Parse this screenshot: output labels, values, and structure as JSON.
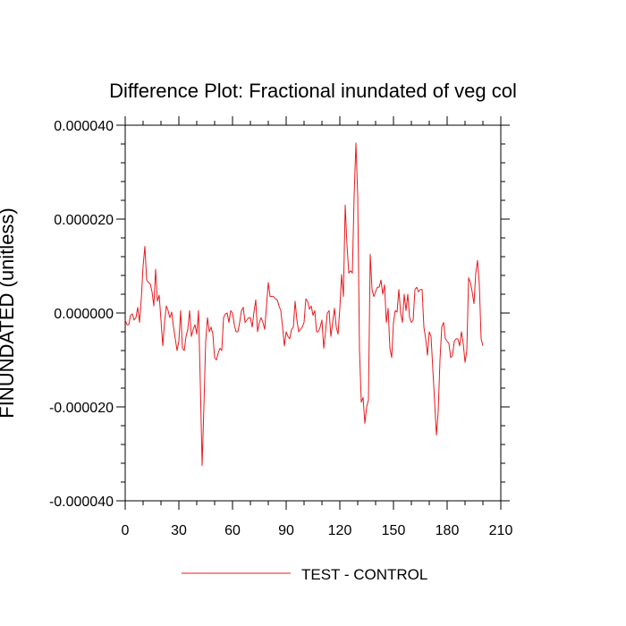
{
  "chart_data": {
    "type": "line",
    "title": "Difference Plot: Fractional inundated of veg col",
    "xlabel": "",
    "ylabel": "FINUNDATED  (unitless)",
    "xlim": [
      0,
      210
    ],
    "ylim": [
      -4e-05,
      4e-05
    ],
    "x_ticks": [
      0,
      30,
      60,
      90,
      120,
      150,
      180,
      210
    ],
    "x_tick_labels": [
      "0",
      "30",
      "60",
      "90",
      "120",
      "150",
      "180",
      "210"
    ],
    "y_ticks": [
      -4e-05,
      -2e-05,
      0,
      2e-05,
      4e-05
    ],
    "y_tick_labels": [
      "-0.000040",
      "-0.000020",
      "0.000000",
      "0.000020",
      "0.000040"
    ],
    "grid": false,
    "legend_position": "bottom-center",
    "colors": {
      "series": "#e8191e",
      "axis": "#000000"
    },
    "series": [
      {
        "name": "TEST - CONTROL",
        "points": [
          [
            0,
            -1.5e-06
          ],
          [
            1,
            -2.5e-06
          ],
          [
            2,
            -2.5e-06
          ],
          [
            3,
            -5e-07
          ],
          [
            4,
            -2e-07
          ],
          [
            5,
            -1.5e-06
          ],
          [
            6,
            -1e-06
          ],
          [
            7,
            1.2e-06
          ],
          [
            8,
            -2e-06
          ],
          [
            9,
            3e-06
          ],
          [
            10,
            1e-05
          ],
          [
            11,
            1.42e-05
          ],
          [
            12,
            7e-06
          ],
          [
            13,
            6.5e-06
          ],
          [
            14,
            6.2e-06
          ],
          [
            15,
            4.5e-06
          ],
          [
            16,
            1.5e-06
          ],
          [
            17,
            9.3e-06
          ],
          [
            18,
            2.5e-06
          ],
          [
            19,
            3.8e-06
          ],
          [
            20,
            -1.5e-06
          ],
          [
            21,
            -7e-06
          ],
          [
            22,
            -2e-06
          ],
          [
            23,
            1.5e-06
          ],
          [
            24,
            5e-07
          ],
          [
            25,
            -1e-06
          ],
          [
            26,
            2e-07
          ],
          [
            27,
            -3e-06
          ],
          [
            28,
            -5.5e-06
          ],
          [
            29,
            -8e-06
          ],
          [
            30,
            -6e-06
          ],
          [
            31,
            5e-07
          ],
          [
            32,
            -7.5e-06
          ],
          [
            33,
            -8e-06
          ],
          [
            34,
            -5e-06
          ],
          [
            35,
            -3.5e-06
          ],
          [
            36,
            5e-07
          ],
          [
            37,
            -5e-06
          ],
          [
            38,
            -3.5e-06
          ],
          [
            39,
            -2.5e-06
          ],
          [
            40,
            -4.5e-06
          ],
          [
            41,
            5e-07
          ],
          [
            42,
            -1.5e-05
          ],
          [
            43,
            -3.25e-05
          ],
          [
            44,
            -2e-05
          ],
          [
            45,
            -6e-06
          ],
          [
            46,
            -1e-06
          ],
          [
            47,
            -4e-06
          ],
          [
            48,
            -3e-06
          ],
          [
            49,
            -4.5e-06
          ],
          [
            50,
            -9.5e-06
          ],
          [
            51,
            -1e-05
          ],
          [
            52,
            -8.5e-06
          ],
          [
            53,
            -7.5e-06
          ],
          [
            54,
            -8e-06
          ],
          [
            55,
            -1e-06
          ],
          [
            56,
            -2e-07
          ],
          [
            57,
            0.0
          ],
          [
            58,
            -2e-06
          ],
          [
            59,
            5e-07
          ],
          [
            60,
            0.0
          ],
          [
            61,
            -2.5e-06
          ],
          [
            62,
            -4e-06
          ],
          [
            63,
            -4e-06
          ],
          [
            64,
            -2e-06
          ],
          [
            65,
            5e-07
          ],
          [
            66,
            1.2e-06
          ],
          [
            67,
            -2e-06
          ],
          [
            68,
            -1.5e-06
          ],
          [
            69,
            -1e-06
          ],
          [
            70,
            -1e-06
          ],
          [
            71,
            -3e-06
          ],
          [
            72,
            2e-07
          ],
          [
            73,
            2.8e-06
          ],
          [
            74,
            -4e-06
          ],
          [
            75,
            -2e-06
          ],
          [
            76,
            -1e-06
          ],
          [
            77,
            -2e-06
          ],
          [
            78,
            -3.5e-06
          ],
          [
            79,
            1.5e-06
          ],
          [
            80,
            6.5e-06
          ],
          [
            81,
            3.5e-06
          ],
          [
            82,
            3.5e-06
          ],
          [
            83,
            3.5e-06
          ],
          [
            84,
            3e-06
          ],
          [
            85,
            2.8e-06
          ],
          [
            86,
            1.5e-06
          ],
          [
            87,
            5e-07
          ],
          [
            88,
            -3e-06
          ],
          [
            89,
            -7e-06
          ],
          [
            90,
            -4e-06
          ],
          [
            91,
            -5e-06
          ],
          [
            92,
            -5.5e-06
          ],
          [
            93,
            -3.5e-06
          ],
          [
            94,
            -3e-06
          ],
          [
            95,
            2.5e-06
          ],
          [
            96,
            -1.5e-06
          ],
          [
            97,
            -4e-06
          ],
          [
            98,
            -3.5e-06
          ],
          [
            99,
            -3e-06
          ],
          [
            100,
            -2e-06
          ],
          [
            101,
            3e-06
          ],
          [
            102,
            2.5e-06
          ],
          [
            103,
            8e-07
          ],
          [
            104,
            1.5e-06
          ],
          [
            105,
            -5e-07
          ],
          [
            106,
            5e-07
          ],
          [
            107,
            -4e-06
          ],
          [
            108,
            -4e-06
          ],
          [
            109,
            -3e-06
          ],
          [
            110,
            -1.5e-06
          ],
          [
            111,
            -7.5e-06
          ],
          [
            112,
            -4e-06
          ],
          [
            113,
            0.0
          ],
          [
            114,
            5e-07
          ],
          [
            115,
            -5e-06
          ],
          [
            116,
            -2e-06
          ],
          [
            117,
            1e-06
          ],
          [
            118,
            -3e-06
          ],
          [
            119,
            -4.5e-06
          ],
          [
            120,
            1e-06
          ],
          [
            121,
            8.2e-06
          ],
          [
            122,
            3.5e-06
          ],
          [
            123,
            2.3e-05
          ],
          [
            124,
            1.45e-05
          ],
          [
            125,
            8.5e-06
          ],
          [
            126,
            9e-06
          ],
          [
            127,
            8.5e-06
          ],
          [
            128,
            2.5e-05
          ],
          [
            129,
            3.62e-05
          ],
          [
            130,
            2.5e-05
          ],
          [
            131,
            -8e-06
          ],
          [
            132,
            -1.9e-05
          ],
          [
            133,
            -1.8e-05
          ],
          [
            134,
            -2.35e-05
          ],
          [
            135,
            -2e-05
          ],
          [
            136,
            -1.85e-05
          ],
          [
            137,
            1.25e-05
          ],
          [
            138,
            5e-06
          ],
          [
            139,
            3.5e-06
          ],
          [
            140,
            4.5e-06
          ],
          [
            141,
            5.5e-06
          ],
          [
            142,
            5.5e-06
          ],
          [
            143,
            7e-06
          ],
          [
            144,
            4e-06
          ],
          [
            145,
            6e-06
          ],
          [
            146,
            -2e-06
          ],
          [
            147,
            1e-06
          ],
          [
            148,
            -7.5e-06
          ],
          [
            149,
            -9.5e-06
          ],
          [
            150,
            -2e-06
          ],
          [
            151,
            5e-07
          ],
          [
            152,
            2e-07
          ],
          [
            153,
            5e-06
          ],
          [
            154,
            0.0
          ],
          [
            155,
            -2e-06
          ],
          [
            156,
            4e-06
          ],
          [
            157,
            5e-07
          ],
          [
            158,
            4e-06
          ],
          [
            159,
            -1e-06
          ],
          [
            160,
            -2e-06
          ],
          [
            161,
            -1.5e-06
          ],
          [
            162,
            5e-06
          ],
          [
            163,
            5.5e-06
          ],
          [
            164,
            4.5e-06
          ],
          [
            165,
            5e-06
          ],
          [
            166,
            5e-06
          ],
          [
            167,
            -3e-06
          ],
          [
            168,
            -5.5e-06
          ],
          [
            169,
            -9e-06
          ],
          [
            170,
            -4e-06
          ],
          [
            171,
            -5e-06
          ],
          [
            172,
            -1.2e-05
          ],
          [
            173,
            -1.9e-05
          ],
          [
            174,
            -2.6e-05
          ],
          [
            175,
            -2.1e-05
          ],
          [
            176,
            -1e-05
          ],
          [
            177,
            -3e-06
          ],
          [
            178,
            -2e-06
          ],
          [
            179,
            -5.5e-06
          ],
          [
            180,
            -6e-06
          ],
          [
            181,
            -6.5e-06
          ],
          [
            182,
            -9.5e-06
          ],
          [
            183,
            -9e-06
          ],
          [
            184,
            -6e-06
          ],
          [
            185,
            -5.5e-06
          ],
          [
            186,
            -5.5e-06
          ],
          [
            187,
            -7e-06
          ],
          [
            188,
            -4e-06
          ],
          [
            189,
            -6.5e-06
          ],
          [
            190,
            -1.05e-05
          ],
          [
            191,
            -8e-06
          ],
          [
            192,
            7.5e-06
          ],
          [
            193,
            6.5e-06
          ],
          [
            194,
            4.5e-06
          ],
          [
            195,
            2e-06
          ],
          [
            196,
            8.5e-06
          ],
          [
            197,
            1.12e-05
          ],
          [
            198,
            6e-06
          ],
          [
            199,
            -5.5e-06
          ],
          [
            200,
            -7e-06
          ]
        ]
      }
    ]
  }
}
